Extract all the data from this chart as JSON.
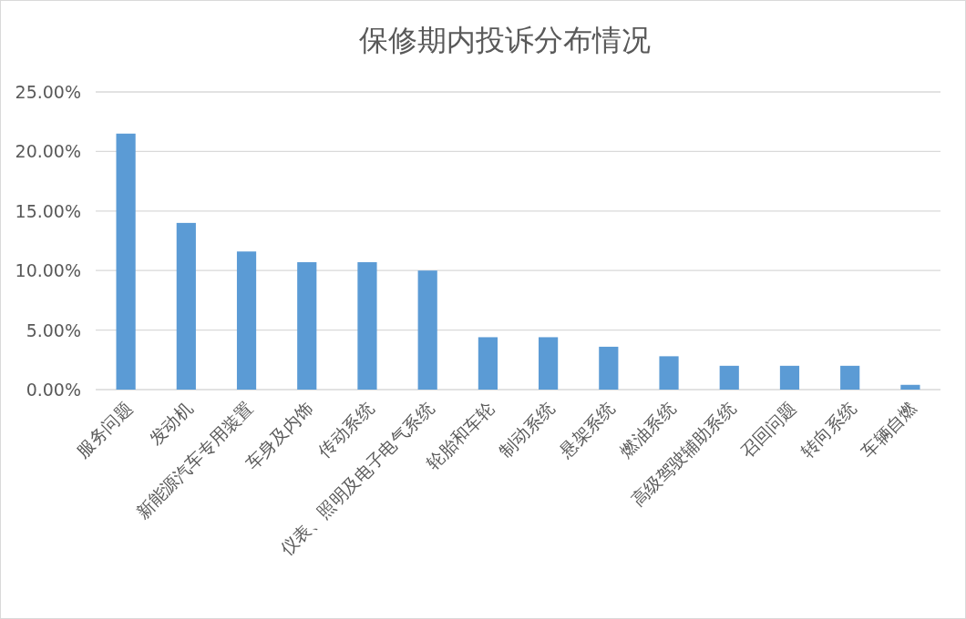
{
  "chart_data": {
    "type": "bar",
    "title": "保修期内投诉分布情况",
    "categories": [
      "服务问题",
      "发动机",
      "新能源汽车专用装置",
      "车身及内饰",
      "传动系统",
      "仪表、照明及电子电气系统",
      "轮胎和车轮",
      "制动系统",
      "悬架系统",
      "燃油系统",
      "高级驾驶辅助系统",
      "召回问题",
      "转向系统",
      "车辆自燃"
    ],
    "values": [
      21.5,
      14.0,
      11.6,
      10.7,
      10.7,
      10.0,
      4.4,
      4.4,
      3.6,
      2.8,
      2.0,
      2.0,
      2.0,
      0.4
    ],
    "color": "#5b9bd5",
    "ylim": [
      0,
      25
    ],
    "yticks": [
      {
        "value": 0,
        "label": "0.00%"
      },
      {
        "value": 5,
        "label": "5.00%"
      },
      {
        "value": 10,
        "label": "10.00%"
      },
      {
        "value": 15,
        "label": "15.00%"
      },
      {
        "value": 20,
        "label": "20.00%"
      },
      {
        "value": 25,
        "label": "25.00%"
      }
    ],
    "grid": "y"
  }
}
